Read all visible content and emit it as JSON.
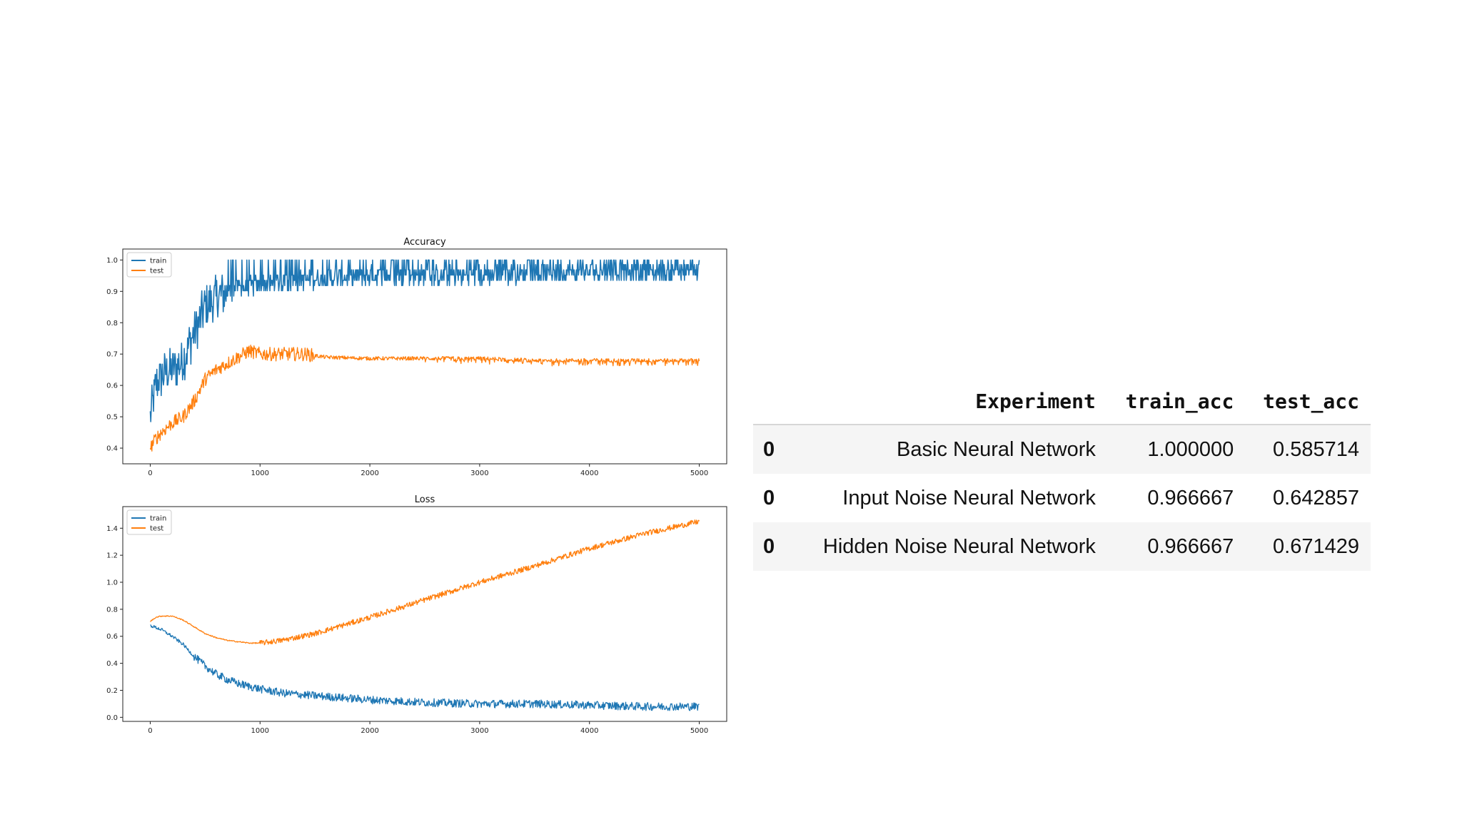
{
  "chart_data": [
    {
      "type": "line",
      "title": "Accuracy",
      "xlabel": "",
      "ylabel": "",
      "xlim": [
        -250,
        5250
      ],
      "ylim": [
        0.35,
        1.035
      ],
      "xticks": [
        0,
        1000,
        2000,
        3000,
        4000,
        5000
      ],
      "xtick_labels": [
        "0",
        "1000",
        "2000",
        "3000",
        "4000",
        "5000"
      ],
      "yticks": [
        0.4,
        0.5,
        0.6,
        0.7,
        0.8,
        0.9,
        1.0
      ],
      "ytick_labels": [
        "0.4",
        "0.5",
        "0.6",
        "0.7",
        "0.8",
        "0.9",
        "1.0"
      ],
      "grid": false,
      "legend_position": "top-left",
      "series": [
        {
          "name": "train",
          "color": "#1f77b4",
          "x": [
            0,
            50,
            100,
            200,
            300,
            400,
            500,
            600,
            700,
            800,
            1000,
            1200,
            1500,
            2000,
            2500,
            3000,
            3500,
            4000,
            4500,
            5000
          ],
          "values": [
            0.5,
            0.6,
            0.63,
            0.65,
            0.68,
            0.77,
            0.85,
            0.88,
            0.9,
            0.91,
            0.92,
            0.93,
            0.94,
            0.95,
            0.95,
            0.95,
            0.96,
            0.96,
            0.96,
            0.96
          ]
        },
        {
          "name": "test",
          "color": "#ff7f0e",
          "x": [
            0,
            50,
            100,
            200,
            300,
            400,
            500,
            600,
            700,
            800,
            900,
            1000,
            1200,
            1400,
            1600,
            2000,
            2500,
            3000,
            3500,
            4000,
            4500,
            5000
          ],
          "values": [
            0.4,
            0.43,
            0.45,
            0.48,
            0.5,
            0.55,
            0.62,
            0.65,
            0.67,
            0.69,
            0.71,
            0.7,
            0.7,
            0.7,
            0.69,
            0.686,
            0.686,
            0.686,
            0.68,
            0.68,
            0.68,
            0.68
          ]
        }
      ]
    },
    {
      "type": "line",
      "title": "Loss",
      "xlabel": "",
      "ylabel": "",
      "xlim": [
        -250,
        5250
      ],
      "ylim": [
        -0.03,
        1.56
      ],
      "xticks": [
        0,
        1000,
        2000,
        3000,
        4000,
        5000
      ],
      "xtick_labels": [
        "0",
        "1000",
        "2000",
        "3000",
        "4000",
        "5000"
      ],
      "yticks": [
        0.0,
        0.2,
        0.4,
        0.6,
        0.8,
        1.0,
        1.2,
        1.4
      ],
      "ytick_labels": [
        "0.0",
        "0.2",
        "0.4",
        "0.6",
        "0.8",
        "1.0",
        "1.2",
        "1.4"
      ],
      "grid": false,
      "legend_position": "top-left",
      "series": [
        {
          "name": "train",
          "color": "#1f77b4",
          "x": [
            0,
            100,
            200,
            300,
            400,
            500,
            600,
            700,
            800,
            1000,
            1200,
            1500,
            2000,
            2500,
            3000,
            3500,
            4000,
            4500,
            5000
          ],
          "values": [
            0.68,
            0.65,
            0.6,
            0.54,
            0.45,
            0.38,
            0.32,
            0.28,
            0.25,
            0.21,
            0.18,
            0.16,
            0.13,
            0.11,
            0.1,
            0.1,
            0.09,
            0.08,
            0.08
          ]
        },
        {
          "name": "test",
          "color": "#ff7f0e",
          "x": [
            0,
            50,
            100,
            200,
            300,
            400,
            500,
            600,
            700,
            800,
            900,
            1000,
            1200,
            1500,
            2000,
            2500,
            3000,
            3500,
            4000,
            4500,
            5000
          ],
          "values": [
            0.71,
            0.74,
            0.75,
            0.75,
            0.72,
            0.67,
            0.62,
            0.59,
            0.57,
            0.56,
            0.55,
            0.55,
            0.57,
            0.62,
            0.74,
            0.87,
            1.0,
            1.12,
            1.25,
            1.36,
            1.45
          ]
        }
      ]
    }
  ],
  "results_table": {
    "columns": [
      "",
      "Experiment",
      "train_acc",
      "test_acc"
    ],
    "rows": [
      {
        "index": "0",
        "experiment": "Basic Neural Network",
        "train_acc": "1.000000",
        "test_acc": "0.585714"
      },
      {
        "index": "0",
        "experiment": "Input Noise Neural Network",
        "train_acc": "0.966667",
        "test_acc": "0.642857"
      },
      {
        "index": "0",
        "experiment": "Hidden Noise Neural Network",
        "train_acc": "0.966667",
        "test_acc": "0.671429"
      }
    ]
  }
}
